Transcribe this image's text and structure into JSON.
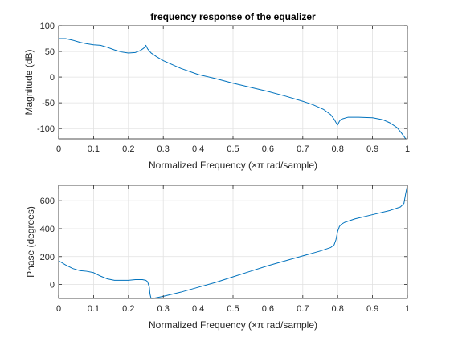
{
  "colors": {
    "line": "#0072bd",
    "grid": "#e1e1e1",
    "axis": "#262626"
  },
  "chart_data": [
    {
      "type": "line",
      "title": "frequency response of the equalizer",
      "xlabel": "Normalized Frequency  (×π rad/sample)",
      "ylabel": "Magnitude (dB)",
      "xlim": [
        0,
        1
      ],
      "ylim": [
        -120,
        100
      ],
      "xticks": [
        0,
        0.1,
        0.2,
        0.3,
        0.4,
        0.5,
        0.6,
        0.7,
        0.8,
        0.9,
        1
      ],
      "xtick_labels": [
        "0",
        "0.1",
        "0.2",
        "0.3",
        "0.4",
        "0.5",
        "0.6",
        "0.7",
        "0.8",
        "0.9",
        "1"
      ],
      "yticks": [
        -100,
        -50,
        0,
        50,
        100
      ],
      "ytick_labels": [
        "-100",
        "-50",
        "0",
        "50",
        "100"
      ],
      "grid": true,
      "x": [
        0,
        0.02,
        0.04,
        0.06,
        0.08,
        0.1,
        0.12,
        0.14,
        0.16,
        0.18,
        0.2,
        0.22,
        0.235,
        0.245,
        0.25,
        0.255,
        0.265,
        0.28,
        0.3,
        0.35,
        0.4,
        0.45,
        0.5,
        0.55,
        0.6,
        0.65,
        0.7,
        0.73,
        0.76,
        0.78,
        0.79,
        0.795,
        0.8,
        0.805,
        0.81,
        0.83,
        0.86,
        0.9,
        0.93,
        0.95,
        0.97,
        0.98,
        0.99,
        0.995
      ],
      "y": [
        75,
        75,
        72,
        68,
        65,
        63,
        62,
        58,
        53,
        49,
        47,
        48,
        52,
        57,
        62,
        55,
        47,
        40,
        32,
        17,
        5,
        -3,
        -12,
        -20,
        -28,
        -37,
        -47,
        -54,
        -63,
        -73,
        -82,
        -88,
        -93,
        -86,
        -82,
        -78,
        -78,
        -79,
        -83,
        -89,
        -98,
        -106,
        -115,
        -120
      ]
    },
    {
      "type": "line",
      "title": "",
      "xlabel": "Normalized Frequency  (×π rad/sample)",
      "ylabel": "Phase (degrees)",
      "xlim": [
        0,
        1
      ],
      "ylim": [
        -100,
        710
      ],
      "xticks": [
        0,
        0.1,
        0.2,
        0.3,
        0.4,
        0.5,
        0.6,
        0.7,
        0.8,
        0.9,
        1
      ],
      "xtick_labels": [
        "0",
        "0.1",
        "0.2",
        "0.3",
        "0.4",
        "0.5",
        "0.6",
        "0.7",
        "0.8",
        "0.9",
        "1"
      ],
      "yticks": [
        0,
        200,
        400,
        600
      ],
      "ytick_labels": [
        "0",
        "200",
        "400",
        "600"
      ],
      "grid": true,
      "x": [
        0,
        0.02,
        0.04,
        0.06,
        0.08,
        0.1,
        0.12,
        0.14,
        0.16,
        0.18,
        0.2,
        0.22,
        0.24,
        0.25,
        0.255,
        0.26,
        0.262,
        0.265,
        0.27,
        0.28,
        0.3,
        0.35,
        0.4,
        0.45,
        0.5,
        0.55,
        0.6,
        0.65,
        0.7,
        0.75,
        0.78,
        0.79,
        0.795,
        0.8,
        0.805,
        0.81,
        0.82,
        0.85,
        0.9,
        0.95,
        0.98,
        0.99,
        0.995,
        1
      ],
      "y": [
        170,
        140,
        115,
        100,
        95,
        85,
        60,
        40,
        30,
        30,
        30,
        35,
        35,
        30,
        20,
        -20,
        -70,
        -100,
        -100,
        -95,
        -85,
        -55,
        -20,
        15,
        55,
        95,
        135,
        170,
        205,
        240,
        265,
        285,
        320,
        380,
        415,
        430,
        445,
        470,
        500,
        530,
        555,
        580,
        650,
        710
      ]
    }
  ]
}
